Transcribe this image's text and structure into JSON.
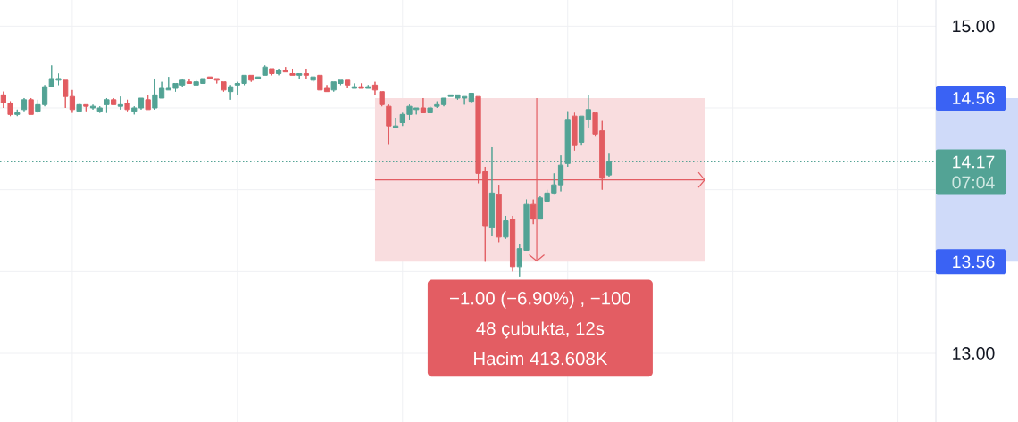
{
  "chart_data": {
    "type": "candlestick",
    "categories": [
      null,
      null,
      null,
      null,
      null,
      null,
      null,
      null,
      null,
      null,
      null,
      null,
      null,
      null,
      null,
      null,
      null,
      null,
      null,
      null,
      null,
      null,
      null,
      null,
      null,
      null,
      null,
      null,
      null,
      null,
      null,
      null,
      null,
      null,
      null,
      null,
      null,
      null,
      null,
      null,
      null,
      null,
      null,
      null,
      null,
      null,
      null,
      null,
      null,
      null,
      null,
      null,
      null,
      null,
      null,
      null,
      null,
      null,
      null,
      null,
      null,
      null,
      null,
      null,
      null,
      null,
      null,
      null,
      null,
      null,
      null,
      null,
      null,
      null,
      null,
      null,
      null,
      null,
      null,
      null,
      null,
      null,
      null,
      null,
      null,
      null,
      null,
      null,
      null,
      null,
      null,
      null,
      null,
      null,
      null,
      null,
      null,
      null,
      null,
      null,
      null,
      null,
      null,
      null,
      null,
      null,
      null,
      null,
      null,
      null,
      null,
      null,
      null,
      null,
      null,
      null,
      null,
      null,
      null,
      null,
      null,
      null,
      null,
      null,
      null,
      null,
      null,
      null,
      null,
      null,
      null,
      null,
      null,
      null,
      null,
      null
    ],
    "ohlc": [
      [
        14.58,
        14.6,
        14.5,
        14.53
      ],
      [
        14.53,
        14.54,
        14.45,
        14.46
      ],
      [
        14.46,
        14.49,
        14.45,
        14.47
      ],
      [
        14.49,
        14.56,
        14.48,
        14.55
      ],
      [
        14.55,
        14.56,
        14.46,
        14.46
      ],
      [
        14.48,
        14.55,
        14.47,
        14.52
      ],
      [
        14.52,
        14.64,
        14.51,
        14.63
      ],
      [
        14.63,
        14.76,
        14.63,
        14.68
      ],
      [
        14.67,
        14.71,
        14.64,
        14.68
      ],
      [
        14.67,
        14.67,
        14.5,
        14.57
      ],
      [
        14.57,
        14.61,
        14.47,
        14.49
      ],
      [
        14.48,
        14.53,
        14.48,
        14.52
      ],
      [
        14.52,
        14.52,
        14.48,
        14.51
      ],
      [
        14.5,
        14.52,
        14.49,
        14.51
      ],
      [
        14.48,
        14.51,
        14.47,
        14.5
      ],
      [
        14.52,
        14.56,
        14.47,
        14.55
      ],
      [
        14.55,
        14.56,
        14.52,
        14.52
      ],
      [
        14.51,
        14.57,
        14.49,
        14.52
      ],
      [
        14.53,
        14.55,
        14.48,
        14.49
      ],
      [
        14.48,
        14.51,
        14.46,
        14.5
      ],
      [
        14.5,
        14.56,
        14.49,
        14.56
      ],
      [
        14.55,
        14.58,
        14.49,
        14.49
      ],
      [
        14.5,
        14.68,
        14.49,
        14.58
      ],
      [
        14.56,
        14.66,
        14.56,
        14.62
      ],
      [
        14.61,
        14.69,
        14.61,
        14.62
      ],
      [
        14.62,
        14.65,
        14.6,
        14.65
      ],
      [
        14.64,
        14.68,
        14.63,
        14.67
      ],
      [
        14.66,
        14.68,
        14.65,
        14.65
      ],
      [
        14.64,
        14.67,
        14.64,
        14.66
      ],
      [
        14.65,
        14.68,
        14.65,
        14.68
      ],
      [
        14.69,
        14.69,
        14.68,
        14.68
      ],
      [
        14.68,
        14.68,
        14.65,
        14.67
      ],
      [
        14.66,
        14.66,
        14.6,
        14.61
      ],
      [
        14.6,
        14.64,
        14.55,
        14.63
      ],
      [
        14.64,
        14.66,
        14.58,
        14.65
      ],
      [
        14.65,
        14.7,
        14.64,
        14.7
      ],
      [
        14.7,
        14.7,
        14.66,
        14.67
      ],
      [
        14.68,
        14.69,
        14.68,
        14.69
      ],
      [
        14.7,
        14.76,
        14.7,
        14.75
      ],
      [
        14.74,
        14.74,
        14.7,
        14.71
      ],
      [
        14.71,
        14.74,
        14.7,
        14.73
      ],
      [
        14.73,
        14.75,
        14.72,
        14.72
      ],
      [
        14.71,
        14.74,
        14.7,
        14.7
      ],
      [
        14.7,
        14.71,
        14.68,
        14.71
      ],
      [
        14.71,
        14.74,
        14.68,
        14.7
      ],
      [
        14.67,
        14.69,
        14.66,
        14.69
      ],
      [
        14.7,
        14.7,
        14.61,
        14.61
      ],
      [
        14.62,
        14.64,
        14.6,
        14.6
      ],
      [
        14.61,
        14.66,
        14.6,
        14.66
      ],
      [
        14.65,
        14.67,
        14.64,
        14.67
      ],
      [
        14.67,
        14.67,
        14.62,
        14.64
      ],
      [
        14.62,
        14.65,
        14.62,
        14.63
      ],
      [
        14.63,
        14.65,
        14.62,
        14.62
      ],
      [
        14.62,
        14.64,
        14.62,
        14.63
      ],
      [
        14.64,
        14.66,
        14.58,
        14.61
      ],
      [
        14.6,
        14.6,
        14.51,
        14.52
      ],
      [
        14.51,
        14.52,
        14.28,
        14.39
      ],
      [
        14.38,
        14.44,
        14.38,
        14.39
      ],
      [
        14.41,
        14.47,
        14.39,
        14.46
      ],
      [
        14.46,
        14.52,
        14.43,
        14.51
      ],
      [
        14.49,
        14.5,
        14.46,
        14.5
      ],
      [
        14.5,
        14.56,
        14.47,
        14.47
      ],
      [
        14.47,
        14.51,
        14.47,
        14.5
      ],
      [
        14.51,
        14.54,
        14.5,
        14.52
      ],
      [
        14.52,
        14.56,
        14.51,
        14.56
      ],
      [
        14.57,
        14.58,
        14.57,
        14.58
      ],
      [
        14.56,
        14.58,
        14.55,
        14.58
      ],
      [
        14.56,
        14.57,
        14.52,
        14.57
      ],
      [
        14.54,
        14.59,
        14.53,
        14.59
      ],
      [
        14.57,
        14.57,
        14.04,
        14.1
      ],
      [
        14.11,
        14.14,
        13.56,
        13.78
      ],
      [
        13.77,
        14.26,
        13.72,
        13.98
      ],
      [
        13.97,
        14.03,
        13.68,
        13.71
      ],
      [
        13.71,
        13.84,
        13.7,
        13.81
      ],
      [
        13.82,
        13.84,
        13.5,
        13.53
      ],
      [
        13.53,
        13.67,
        13.47,
        13.64
      ],
      [
        13.63,
        13.94,
        13.63,
        13.91
      ],
      [
        13.91,
        13.94,
        13.79,
        13.82
      ],
      [
        13.82,
        13.96,
        13.82,
        13.95
      ],
      [
        13.93,
        14.0,
        13.93,
        13.98
      ],
      [
        13.98,
        14.1,
        13.97,
        14.03
      ],
      [
        14.03,
        14.21,
        13.99,
        14.15
      ],
      [
        14.16,
        14.48,
        14.14,
        14.43
      ],
      [
        14.45,
        14.47,
        14.24,
        14.27
      ],
      [
        14.29,
        14.45,
        14.27,
        14.45
      ],
      [
        14.43,
        14.58,
        14.38,
        14.49
      ],
      [
        14.47,
        14.47,
        14.33,
        14.34
      ],
      [
        14.36,
        14.42,
        14.0,
        14.07
      ],
      [
        14.09,
        14.22,
        14.08,
        14.17
      ],
      null,
      null,
      null,
      null,
      null,
      null,
      null,
      null,
      null,
      null,
      null,
      null,
      null,
      null,
      null,
      null,
      null,
      null,
      null,
      null,
      null,
      null,
      null,
      null,
      null,
      null,
      null,
      null,
      null,
      null,
      null,
      null,
      null,
      null,
      null,
      null,
      null,
      null,
      null,
      null,
      null,
      null,
      null,
      null,
      null,
      null,
      null
    ],
    "colors": [
      "#e25c61",
      "#e25c61",
      "#53a395",
      "#53a395",
      "#e25c61",
      "#53a395",
      "#53a395",
      "#53a395",
      "#53a395",
      "#e25c61",
      "#e25c61",
      "#53a395",
      "#e25c61",
      "#53a395",
      "#53a395",
      "#53a395",
      "#e25c61",
      "#53a395",
      "#e25c61",
      "#53a395",
      "#53a395",
      "#e25c61",
      "#53a395",
      "#53a395",
      "#53a395",
      "#53a395",
      "#53a395",
      "#e25c61",
      "#53a395",
      "#53a395",
      "#e25c61",
      "#e25c61",
      "#e25c61",
      "#53a395",
      "#53a395",
      "#53a395",
      "#e25c61",
      "#53a395",
      "#53a395",
      "#e25c61",
      "#53a395",
      "#e25c61",
      "#e25c61",
      "#53a395",
      "#e25c61",
      "#53a395",
      "#e25c61",
      "#e25c61",
      "#53a395",
      "#53a395",
      "#e25c61",
      "#53a395",
      "#e25c61",
      "#53a395",
      "#e25c61",
      "#e25c61",
      "#e25c61",
      "#53a395",
      "#53a395",
      "#53a395",
      "#53a395",
      "#e25c61",
      "#53a395",
      "#53a395",
      "#53a395",
      "#53a395",
      "#53a395",
      "#53a395",
      "#53a395",
      "#e25c61",
      "#e25c61",
      "#53a395",
      "#e25c61",
      "#53a395",
      "#e25c61",
      "#53a395",
      "#53a395",
      "#e25c61",
      "#53a395",
      "#53a395",
      "#53a395",
      "#53a395",
      "#53a395",
      "#e25c61",
      "#53a395",
      "#53a395",
      "#e25c61",
      "#e25c61",
      "#53a395",
      null,
      null,
      null,
      null,
      null,
      null,
      null,
      null,
      null,
      null,
      null,
      null,
      null,
      null,
      null,
      null,
      null,
      null,
      null,
      null,
      null,
      null,
      null,
      null,
      null,
      null,
      null,
      null,
      null,
      null,
      null,
      null,
      null,
      null,
      null,
      null,
      null,
      null,
      null,
      null,
      null,
      null,
      null,
      null,
      null,
      null,
      null
    ],
    "ylim": [
      12.58,
      15.16
    ],
    "yticks": [
      {
        "value": 13,
        "label": "13.00"
      },
      {
        "value": 13.5,
        "label": null
      },
      {
        "value": 14,
        "label": null
      },
      {
        "value": 14.5,
        "label": null
      },
      {
        "value": 15,
        "label": "15.00"
      }
    ],
    "grid": true,
    "ref_lines": [
      {
        "axis": "y",
        "value": 14.17,
        "label": "14.17",
        "color": "#53a395",
        "line_style": "dotted"
      }
    ],
    "bands": [
      {
        "axis": "y",
        "from": 14.56,
        "to": 13.56,
        "color": "#f9dddf"
      }
    ],
    "annotations": [
      "−1.00 (−6.90%) , −100",
      "48 çubukta, 12s",
      "Hacim 413.608K",
      "14.56",
      "13.56",
      "07:04"
    ]
  }
}
